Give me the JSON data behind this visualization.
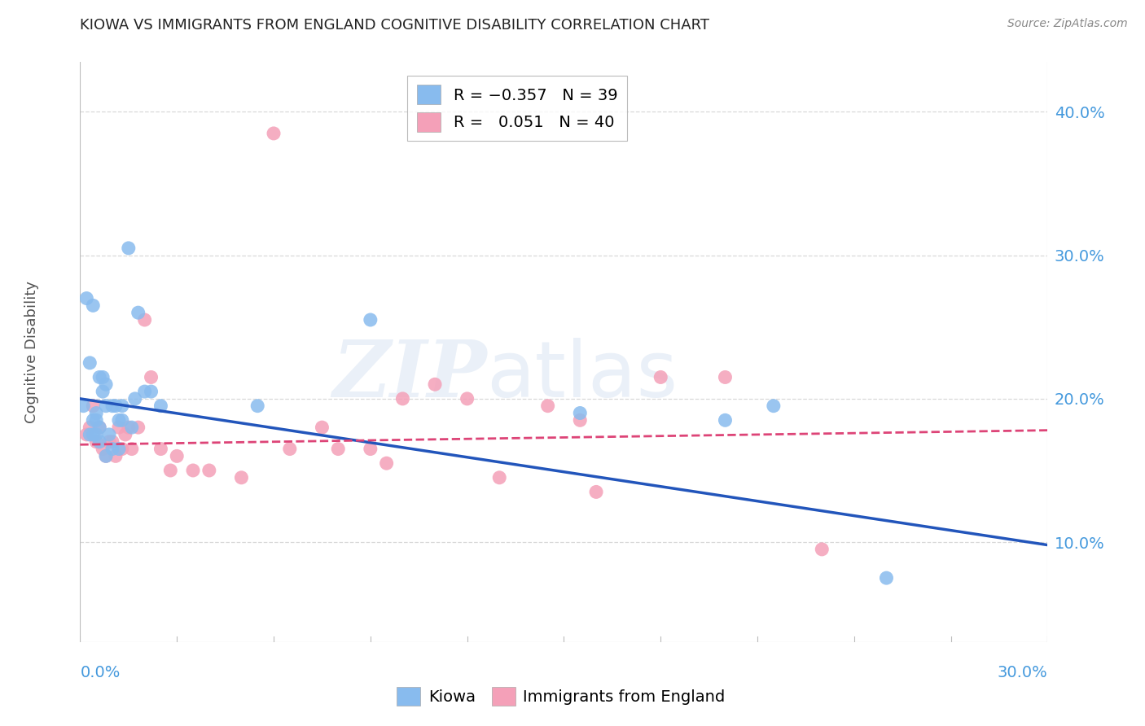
{
  "title": "KIOWA VS IMMIGRANTS FROM ENGLAND COGNITIVE DISABILITY CORRELATION CHART",
  "source": "Source: ZipAtlas.com",
  "ylabel": "Cognitive Disability",
  "right_yticks": [
    0.1,
    0.2,
    0.3,
    0.4
  ],
  "right_yticklabels": [
    "10.0%",
    "20.0%",
    "30.0%",
    "40.0%"
  ],
  "xlim": [
    0.0,
    0.3
  ],
  "ylim": [
    0.03,
    0.435
  ],
  "kiowa_x": [
    0.001,
    0.002,
    0.003,
    0.004,
    0.004,
    0.005,
    0.005,
    0.006,
    0.006,
    0.007,
    0.007,
    0.008,
    0.008,
    0.009,
    0.01,
    0.011,
    0.012,
    0.013,
    0.013,
    0.015,
    0.016,
    0.017,
    0.018,
    0.02,
    0.022,
    0.025,
    0.055,
    0.09,
    0.155,
    0.2,
    0.215,
    0.25,
    0.003,
    0.004,
    0.005,
    0.006,
    0.008,
    0.01,
    0.012
  ],
  "kiowa_y": [
    0.195,
    0.27,
    0.225,
    0.265,
    0.185,
    0.19,
    0.185,
    0.215,
    0.18,
    0.215,
    0.205,
    0.21,
    0.195,
    0.175,
    0.195,
    0.195,
    0.185,
    0.195,
    0.185,
    0.305,
    0.18,
    0.2,
    0.26,
    0.205,
    0.205,
    0.195,
    0.195,
    0.255,
    0.19,
    0.185,
    0.195,
    0.075,
    0.175,
    0.175,
    0.175,
    0.17,
    0.16,
    0.165,
    0.165
  ],
  "england_x": [
    0.002,
    0.003,
    0.004,
    0.005,
    0.006,
    0.007,
    0.008,
    0.009,
    0.01,
    0.011,
    0.012,
    0.013,
    0.014,
    0.015,
    0.016,
    0.018,
    0.02,
    0.022,
    0.025,
    0.028,
    0.03,
    0.035,
    0.04,
    0.05,
    0.065,
    0.075,
    0.08,
    0.095,
    0.1,
    0.11,
    0.12,
    0.145,
    0.155,
    0.18,
    0.2,
    0.06,
    0.09,
    0.13,
    0.16,
    0.23
  ],
  "england_y": [
    0.175,
    0.18,
    0.195,
    0.17,
    0.18,
    0.165,
    0.16,
    0.17,
    0.17,
    0.16,
    0.18,
    0.165,
    0.175,
    0.18,
    0.165,
    0.18,
    0.255,
    0.215,
    0.165,
    0.15,
    0.16,
    0.15,
    0.15,
    0.145,
    0.165,
    0.18,
    0.165,
    0.155,
    0.2,
    0.21,
    0.2,
    0.195,
    0.185,
    0.215,
    0.215,
    0.385,
    0.165,
    0.145,
    0.135,
    0.095
  ],
  "kiowa_color": "#88bbee",
  "england_color": "#f4a0b8",
  "kiowa_line_color": "#2255bb",
  "england_line_color": "#dd4477",
  "kiowa_line_x0": 0.0,
  "kiowa_line_y0": 0.2,
  "kiowa_line_x1": 0.3,
  "kiowa_line_y1": 0.098,
  "england_line_x0": 0.0,
  "england_line_y0": 0.168,
  "england_line_x1": 0.3,
  "england_line_y1": 0.178,
  "background_color": "#ffffff",
  "grid_color": "#d8d8d8",
  "title_color": "#222222",
  "axis_label_color": "#4499dd",
  "source_color": "#888888",
  "watermark_color": "#eaf0f8"
}
